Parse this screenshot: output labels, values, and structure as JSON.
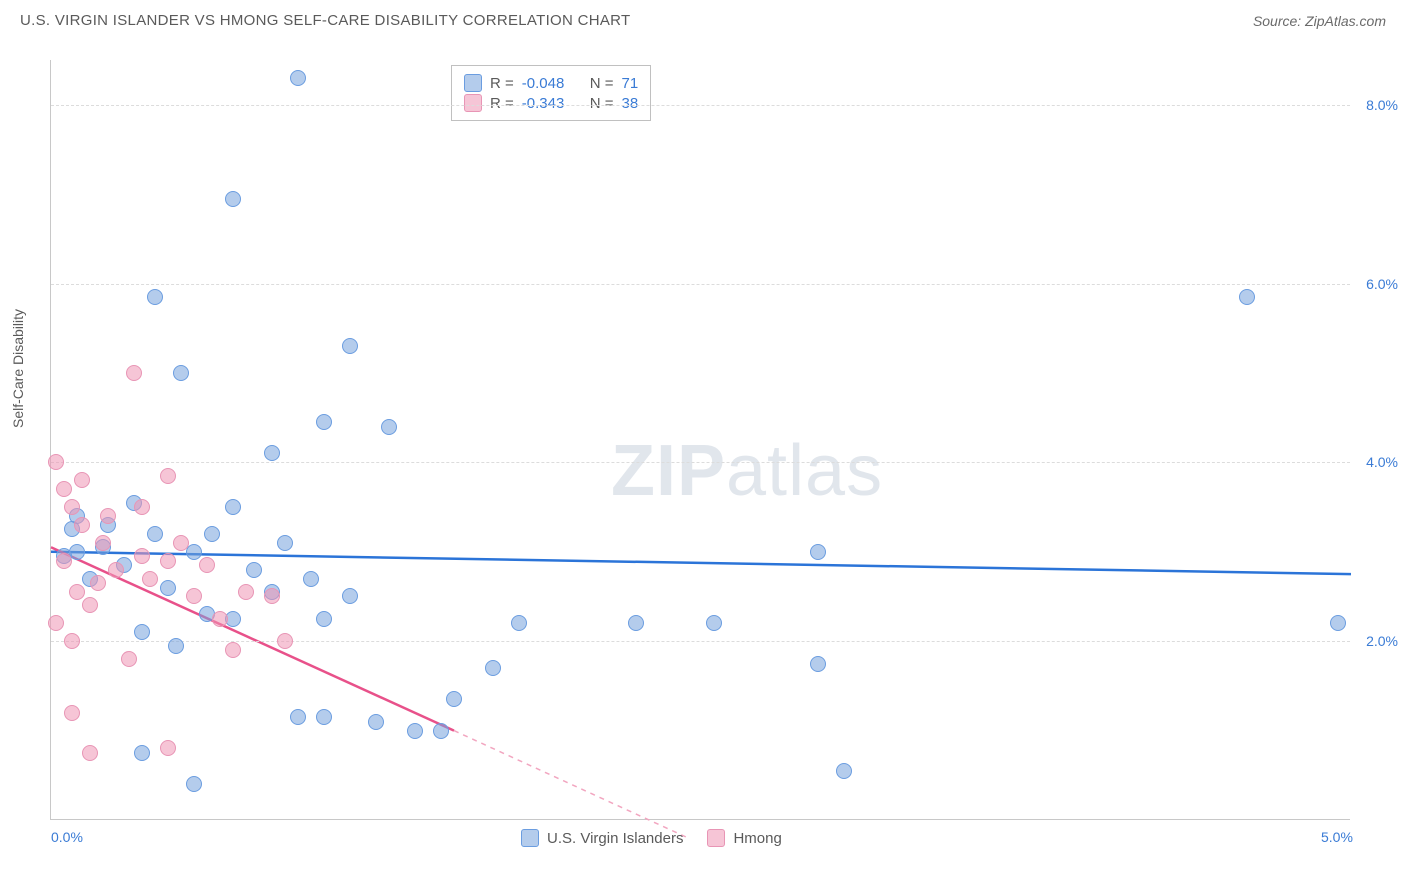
{
  "header": {
    "title": "U.S. VIRGIN ISLANDER VS HMONG SELF-CARE DISABILITY CORRELATION CHART",
    "source": "Source: ZipAtlas.com"
  },
  "chart": {
    "type": "scatter",
    "y_axis_label": "Self-Care Disability",
    "xlim": [
      0.0,
      5.0
    ],
    "ylim": [
      0.0,
      8.5
    ],
    "x_ticks": [
      {
        "value": 0.0,
        "label": "0.0%"
      },
      {
        "value": 5.0,
        "label": "5.0%"
      }
    ],
    "y_ticks": [
      {
        "value": 2.0,
        "label": "2.0%"
      },
      {
        "value": 4.0,
        "label": "4.0%"
      },
      {
        "value": 6.0,
        "label": "6.0%"
      },
      {
        "value": 8.0,
        "label": "8.0%"
      }
    ],
    "grid_color": "#dcdcdc",
    "axis_color": "#c8c8c8",
    "background_color": "#ffffff",
    "marker_radius": 8,
    "series": [
      {
        "name": "U.S. Virgin Islanders",
        "fill": "rgba(119,162,221,0.55)",
        "stroke": "#6b9de0",
        "R": "-0.048",
        "N": "71",
        "trend": {
          "x1": 0.0,
          "y1": 3.0,
          "x2": 5.0,
          "y2": 2.75,
          "color": "#2b74d8"
        },
        "points": [
          {
            "x": 0.95,
            "y": 8.3
          },
          {
            "x": 0.7,
            "y": 6.95
          },
          {
            "x": 0.4,
            "y": 5.85
          },
          {
            "x": 0.5,
            "y": 5.0
          },
          {
            "x": 1.15,
            "y": 5.3
          },
          {
            "x": 1.05,
            "y": 4.45
          },
          {
            "x": 1.3,
            "y": 4.4
          },
          {
            "x": 0.85,
            "y": 4.1
          },
          {
            "x": 0.1,
            "y": 3.4
          },
          {
            "x": 0.2,
            "y": 3.05
          },
          {
            "x": 0.28,
            "y": 2.85
          },
          {
            "x": 0.4,
            "y": 3.2
          },
          {
            "x": 0.45,
            "y": 2.6
          },
          {
            "x": 0.55,
            "y": 3.0
          },
          {
            "x": 0.62,
            "y": 3.2
          },
          {
            "x": 0.7,
            "y": 3.5
          },
          {
            "x": 0.78,
            "y": 2.8
          },
          {
            "x": 0.9,
            "y": 3.1
          },
          {
            "x": 0.6,
            "y": 2.3
          },
          {
            "x": 0.7,
            "y": 2.25
          },
          {
            "x": 0.85,
            "y": 2.55
          },
          {
            "x": 1.0,
            "y": 2.7
          },
          {
            "x": 1.05,
            "y": 2.25
          },
          {
            "x": 1.15,
            "y": 2.5
          },
          {
            "x": 0.35,
            "y": 2.1
          },
          {
            "x": 0.48,
            "y": 1.95
          },
          {
            "x": 0.95,
            "y": 1.15
          },
          {
            "x": 1.05,
            "y": 1.15
          },
          {
            "x": 1.25,
            "y": 1.1
          },
          {
            "x": 1.4,
            "y": 1.0
          },
          {
            "x": 1.5,
            "y": 1.0
          },
          {
            "x": 1.55,
            "y": 1.35
          },
          {
            "x": 1.7,
            "y": 1.7
          },
          {
            "x": 1.8,
            "y": 2.2
          },
          {
            "x": 0.55,
            "y": 0.4
          },
          {
            "x": 0.1,
            "y": 3.0
          },
          {
            "x": 0.15,
            "y": 2.7
          },
          {
            "x": 0.22,
            "y": 3.3
          },
          {
            "x": 0.05,
            "y": 2.95
          },
          {
            "x": 0.08,
            "y": 3.25
          },
          {
            "x": 4.6,
            "y": 5.85
          },
          {
            "x": 4.95,
            "y": 2.2
          },
          {
            "x": 2.25,
            "y": 2.2
          },
          {
            "x": 2.55,
            "y": 2.2
          },
          {
            "x": 2.95,
            "y": 1.75
          },
          {
            "x": 3.05,
            "y": 0.55
          },
          {
            "x": 2.95,
            "y": 3.0
          },
          {
            "x": 0.32,
            "y": 3.55
          },
          {
            "x": 0.35,
            "y": 0.75
          }
        ]
      },
      {
        "name": "Hmong",
        "fill": "rgba(238,150,180,0.55)",
        "stroke": "#e895b5",
        "R": "-0.343",
        "N": "38",
        "trend_solid": {
          "x1": 0.0,
          "y1": 3.05,
          "x2": 1.55,
          "y2": 1.0,
          "color": "#e8518a"
        },
        "trend_dash": {
          "x1": 1.55,
          "y1": 1.0,
          "x2": 2.45,
          "y2": -0.2,
          "color": "#f2a6c0"
        },
        "points": [
          {
            "x": 0.02,
            "y": 4.0
          },
          {
            "x": 0.05,
            "y": 3.7
          },
          {
            "x": 0.08,
            "y": 3.5
          },
          {
            "x": 0.12,
            "y": 3.3
          },
          {
            "x": 0.05,
            "y": 2.9
          },
          {
            "x": 0.1,
            "y": 2.55
          },
          {
            "x": 0.15,
            "y": 2.4
          },
          {
            "x": 0.02,
            "y": 2.2
          },
          {
            "x": 0.08,
            "y": 2.0
          },
          {
            "x": 0.32,
            "y": 5.0
          },
          {
            "x": 0.45,
            "y": 3.85
          },
          {
            "x": 0.35,
            "y": 3.5
          },
          {
            "x": 0.2,
            "y": 3.1
          },
          {
            "x": 0.25,
            "y": 2.8
          },
          {
            "x": 0.35,
            "y": 2.95
          },
          {
            "x": 0.38,
            "y": 2.7
          },
          {
            "x": 0.45,
            "y": 2.9
          },
          {
            "x": 0.5,
            "y": 3.1
          },
          {
            "x": 0.55,
            "y": 2.5
          },
          {
            "x": 0.6,
            "y": 2.85
          },
          {
            "x": 0.65,
            "y": 2.25
          },
          {
            "x": 0.7,
            "y": 1.9
          },
          {
            "x": 0.75,
            "y": 2.55
          },
          {
            "x": 0.85,
            "y": 2.5
          },
          {
            "x": 0.9,
            "y": 2.0
          },
          {
            "x": 0.08,
            "y": 1.2
          },
          {
            "x": 0.15,
            "y": 0.75
          },
          {
            "x": 0.45,
            "y": 0.8
          },
          {
            "x": 0.3,
            "y": 1.8
          },
          {
            "x": 0.12,
            "y": 3.8
          },
          {
            "x": 0.22,
            "y": 3.4
          },
          {
            "x": 0.18,
            "y": 2.65
          }
        ]
      }
    ],
    "legend": {
      "items": [
        {
          "label": "U.S. Virgin Islanders",
          "fill": "rgba(119,162,221,0.55)",
          "stroke": "#6b9de0"
        },
        {
          "label": "Hmong",
          "fill": "rgba(238,150,180,0.55)",
          "stroke": "#e895b5"
        }
      ]
    },
    "watermark": {
      "zip": "ZIP",
      "atlas": "atlas"
    }
  }
}
